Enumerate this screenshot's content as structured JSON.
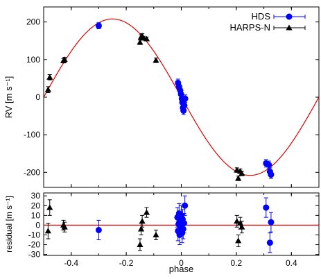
{
  "chart_data": [
    {
      "type": "scatter",
      "panel": "top",
      "title": "",
      "xlabel": "",
      "ylabel": "RV [m s⁻¹]",
      "xlim": [
        -0.5,
        0.5
      ],
      "ylim": [
        -240,
        240
      ],
      "xticks": [
        -0.4,
        -0.2,
        0,
        0.2,
        0.4
      ],
      "yticks": [
        -200,
        -100,
        0,
        100,
        200
      ],
      "ytick_labels": [
        "-200",
        "-100",
        "0",
        "100",
        "200"
      ],
      "grid": false,
      "legend_placement": "top-right",
      "series": [
        {
          "name": "HDS",
          "color": "#0000ff",
          "marker": "circle",
          "points": [
            {
              "x": -0.3,
              "y": 190,
              "err": 8
            },
            {
              "x": -0.012,
              "y": 38,
              "err": 10
            },
            {
              "x": -0.008,
              "y": 28,
              "err": 10
            },
            {
              "x": -0.004,
              "y": 18,
              "err": 10
            },
            {
              "x": -0.001,
              "y": 8,
              "err": 10
            },
            {
              "x": 0.002,
              "y": -4,
              "err": 10
            },
            {
              "x": 0.004,
              "y": -14,
              "err": 10
            },
            {
              "x": 0.006,
              "y": -28,
              "err": 10
            },
            {
              "x": 0.008,
              "y": -36,
              "err": 10
            },
            {
              "x": 0.011,
              "y": -22,
              "err": 10
            },
            {
              "x": 0.014,
              "y": -4,
              "err": 10
            },
            {
              "x": 0.308,
              "y": -176,
              "err": 10
            },
            {
              "x": 0.318,
              "y": -180,
              "err": 10
            },
            {
              "x": 0.322,
              "y": -198,
              "err": 10
            },
            {
              "x": 0.326,
              "y": -206,
              "err": 10
            }
          ]
        },
        {
          "name": "HARPS-N",
          "color": "#000000",
          "marker": "triangle",
          "points": [
            {
              "x": -0.484,
              "y": 20,
              "err": 8
            },
            {
              "x": -0.478,
              "y": 53,
              "err": 7
            },
            {
              "x": -0.428,
              "y": 97,
              "err": 6
            },
            {
              "x": -0.424,
              "y": 100,
              "err": 6
            },
            {
              "x": -0.15,
              "y": 146,
              "err": 6
            },
            {
              "x": -0.146,
              "y": 160,
              "err": 6
            },
            {
              "x": -0.142,
              "y": 163,
              "err": 6
            },
            {
              "x": -0.138,
              "y": 157,
              "err": 5
            },
            {
              "x": -0.126,
              "y": 155,
              "err": 5
            },
            {
              "x": -0.092,
              "y": 98,
              "err": 6
            },
            {
              "x": 0.202,
              "y": -194,
              "err": 6
            },
            {
              "x": 0.207,
              "y": -216,
              "err": 6
            },
            {
              "x": 0.214,
              "y": -197,
              "err": 6
            },
            {
              "x": 0.22,
              "y": -203,
              "err": 6
            }
          ]
        }
      ],
      "model_curve": {
        "color": "#dd0000",
        "amplitude": 208,
        "phase_of_maximum": -0.25,
        "form": "K*cos(2*pi*(x - phase_of_maximum))"
      }
    },
    {
      "type": "scatter",
      "panel": "bottom",
      "title": "",
      "xlabel": "phase",
      "ylabel": "residual [m s⁻¹]",
      "xlim": [
        -0.5,
        0.5
      ],
      "ylim": [
        -31,
        33
      ],
      "xticks": [
        -0.4,
        -0.2,
        0,
        0.2,
        0.4
      ],
      "xtick_labels": [
        "-0.4",
        "-0.2",
        "0",
        "0.2",
        "0.4"
      ],
      "yticks": [
        -30,
        -20,
        -10,
        0,
        10,
        20,
        30
      ],
      "ytick_labels": [
        "-30",
        "-20",
        "-10",
        "0",
        "10",
        "20",
        "30"
      ],
      "grid": false,
      "zero_line_color": "#dd0000",
      "series": [
        {
          "name": "HDS",
          "color": "#0000ff",
          "marker": "circle",
          "points": [
            {
              "x": -0.3,
              "y": -5,
              "err": 10
            },
            {
              "x": -0.014,
              "y": 8,
              "err": 10
            },
            {
              "x": -0.012,
              "y": -6,
              "err": 10
            },
            {
              "x": -0.01,
              "y": 1,
              "err": 10
            },
            {
              "x": -0.008,
              "y": 12,
              "err": 10
            },
            {
              "x": -0.006,
              "y": -10,
              "err": 10
            },
            {
              "x": -0.004,
              "y": 4,
              "err": 10
            },
            {
              "x": -0.002,
              "y": -2,
              "err": 10
            },
            {
              "x": 0.0,
              "y": 10,
              "err": 10
            },
            {
              "x": 0.003,
              "y": -8,
              "err": 10
            },
            {
              "x": 0.005,
              "y": 6,
              "err": 10
            },
            {
              "x": 0.007,
              "y": -4,
              "err": 10
            },
            {
              "x": 0.01,
              "y": 2,
              "err": 10
            },
            {
              "x": 0.013,
              "y": 20,
              "err": 10
            },
            {
              "x": 0.308,
              "y": 18,
              "err": 10
            },
            {
              "x": 0.322,
              "y": -18,
              "err": 10
            },
            {
              "x": 0.326,
              "y": 3,
              "err": 10
            }
          ]
        },
        {
          "name": "HARPS-N",
          "color": "#000000",
          "marker": "triangle",
          "points": [
            {
              "x": -0.484,
              "y": -6,
              "err": 8
            },
            {
              "x": -0.478,
              "y": 18,
              "err": 8
            },
            {
              "x": -0.428,
              "y": 0,
              "err": 5
            },
            {
              "x": -0.424,
              "y": -2,
              "err": 5
            },
            {
              "x": -0.15,
              "y": -20,
              "err": 6
            },
            {
              "x": -0.146,
              "y": -4,
              "err": 6
            },
            {
              "x": -0.142,
              "y": 4,
              "err": 6
            },
            {
              "x": -0.126,
              "y": 13,
              "err": 5
            },
            {
              "x": -0.092,
              "y": -10,
              "err": 5
            },
            {
              "x": 0.202,
              "y": 4,
              "err": 6
            },
            {
              "x": 0.207,
              "y": -16,
              "err": 6
            },
            {
              "x": 0.214,
              "y": 2,
              "err": 6
            },
            {
              "x": 0.22,
              "y": -2,
              "err": 6
            }
          ]
        }
      ]
    }
  ]
}
